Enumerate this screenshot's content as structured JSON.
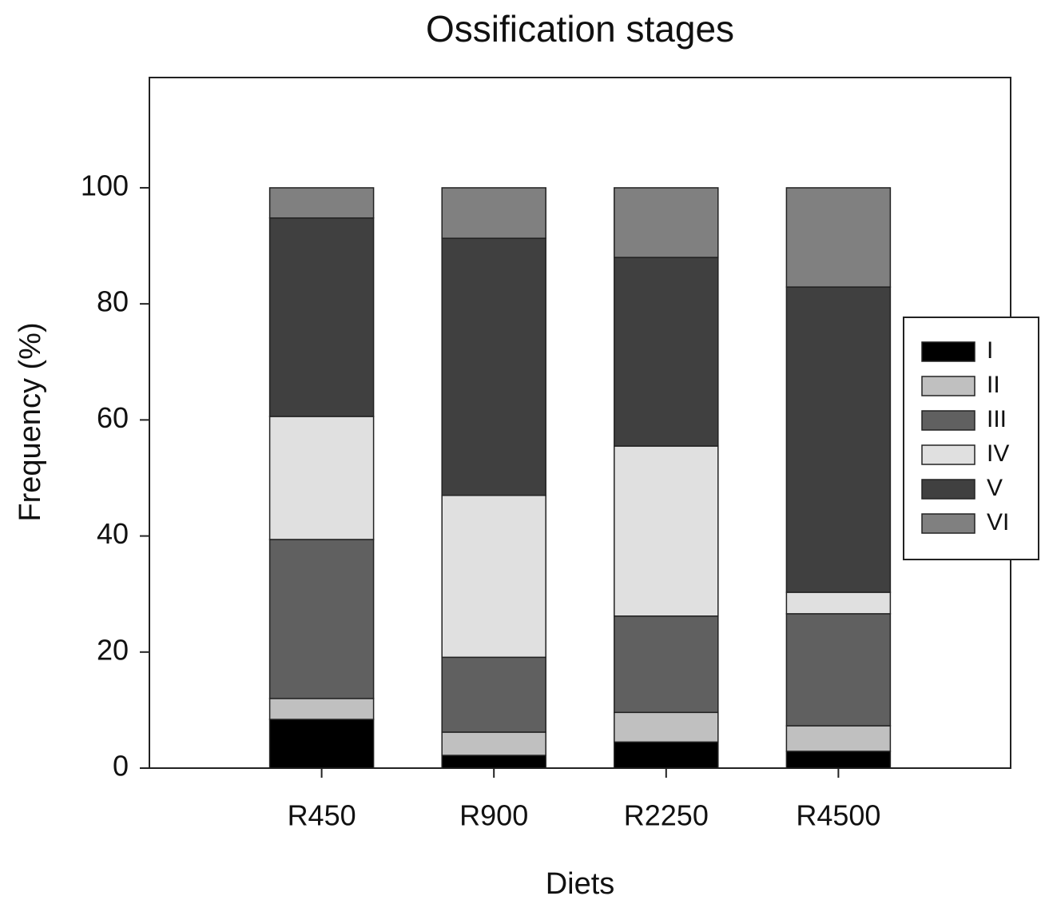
{
  "chart_data": {
    "type": "stacked_bar",
    "title": "Ossification stages",
    "x_label": "Diets",
    "y_label": "Frequency (%)",
    "categories": [
      "R450",
      "R900",
      "R2250",
      "R4500"
    ],
    "series": [
      {
        "name": "I",
        "color": "#000000",
        "values": [
          8.4,
          2.2,
          4.5,
          2.9
        ]
      },
      {
        "name": "II",
        "color": "#c0c0c0",
        "values": [
          3.6,
          4.0,
          5.1,
          4.4
        ]
      },
      {
        "name": "III",
        "color": "#606060",
        "values": [
          27.4,
          12.9,
          16.6,
          19.3
        ]
      },
      {
        "name": "IV",
        "color": "#e0e0e0",
        "values": [
          21.2,
          27.9,
          29.3,
          3.7
        ]
      },
      {
        "name": "V",
        "color": "#404040",
        "values": [
          34.2,
          44.3,
          32.5,
          52.6
        ]
      },
      {
        "name": "VI",
        "color": "#808080",
        "values": [
          5.2,
          8.7,
          12.0,
          17.1
        ]
      }
    ],
    "ylim": [
      0,
      119
    ],
    "yticks": [
      0,
      20,
      40,
      60,
      80,
      100
    ],
    "grid": false,
    "legend": "right"
  }
}
